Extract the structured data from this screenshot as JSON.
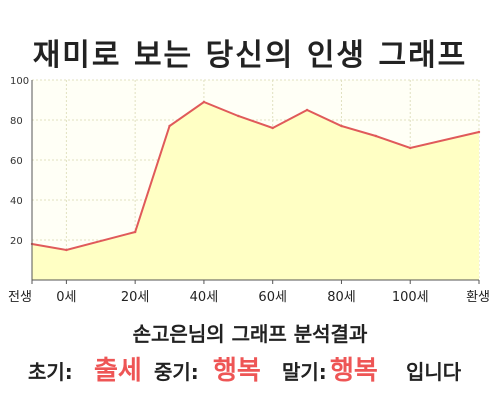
{
  "title": "재미로 보는 당신의 인생 그래프",
  "chart_data": {
    "type": "area",
    "title": "재미로 보는 당신의 인생 그래프",
    "x": [
      -10,
      0,
      20,
      30,
      40,
      50,
      60,
      70,
      80,
      90,
      100,
      120
    ],
    "y": [
      18,
      15,
      24,
      77,
      89,
      82,
      76,
      85,
      77,
      72,
      66,
      74
    ],
    "xlim": [
      -10,
      120
    ],
    "ylim": [
      0,
      100
    ],
    "x_ticks": [
      -10,
      0,
      20,
      40,
      60,
      80,
      100,
      120
    ],
    "x_tick_labels": [
      "전생",
      "0세",
      "20세",
      "40세",
      "60세",
      "80세",
      "100세",
      "환생"
    ],
    "y_ticks": [
      20,
      40,
      60,
      80,
      100
    ],
    "y_tick_labels": [
      "20",
      "40",
      "60",
      "80",
      "100"
    ],
    "grid": true,
    "line_color": "#e05a5a",
    "fill_color": "#ffffc4",
    "grid_color": "#e0e0c0"
  },
  "result": {
    "title": "손고은님의 그래프 분석결과",
    "early_label": "초기:",
    "early_value": "출세",
    "mid_label": "중기:",
    "mid_value": "행복",
    "late_label": "말기:",
    "late_value": "행복",
    "suffix": "입니다"
  }
}
